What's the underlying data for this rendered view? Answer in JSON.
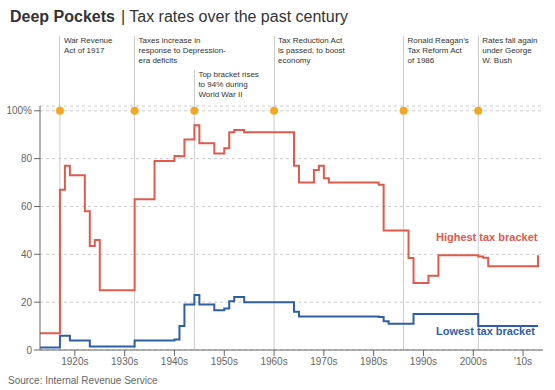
{
  "chart_data": {
    "type": "line",
    "line_style": "step",
    "title": "Deep Pockets",
    "subtitle": "| Tax rates over the past century",
    "x": [
      1913,
      1916,
      1917,
      1917,
      1918,
      1919,
      1922,
      1923,
      1924,
      1925,
      1926,
      1932,
      1933,
      1934,
      1936,
      1938,
      1940,
      1941,
      1942,
      1944,
      1945,
      1946,
      1948,
      1950,
      1951,
      1952,
      1954,
      1955,
      1963,
      1964,
      1965,
      1968,
      1969,
      1970,
      1971,
      1976,
      1977,
      1978,
      1979,
      1981,
      1982,
      1983,
      1984,
      1985,
      1986,
      1987,
      1988,
      1990,
      1991,
      1992,
      1993,
      2001,
      2002,
      2003,
      2004,
      2013
    ],
    "series": [
      {
        "name": "Highest tax bracket",
        "color": "#e05a4e",
        "values": [
          7,
          7,
          7,
          67,
          77,
          73,
          58,
          43.5,
          46,
          25,
          25,
          63,
          63,
          63,
          79,
          79,
          81.1,
          81,
          88,
          94,
          86.45,
          86.45,
          82.13,
          84.36,
          91,
          92,
          91,
          91,
          91,
          77,
          70,
          75.25,
          77,
          71.75,
          70,
          70,
          70,
          70,
          70,
          69.13,
          50,
          50,
          50,
          50,
          50,
          38.5,
          28,
          28,
          31,
          31,
          39.6,
          39.1,
          38.6,
          35,
          35,
          39.6
        ]
      },
      {
        "name": "Lowest tax bracket",
        "color": "#2e5fa3",
        "values": [
          1,
          1,
          1,
          6,
          6,
          4,
          4,
          1.5,
          1.5,
          1.5,
          1.5,
          4,
          4,
          4,
          4,
          4,
          4.4,
          10,
          19,
          23,
          19,
          19,
          16.6,
          17.4,
          20.4,
          22.2,
          20,
          20,
          20,
          16,
          14,
          14,
          14,
          14,
          14,
          14,
          14,
          14,
          14,
          13.825,
          12,
          11,
          11,
          11,
          11,
          11,
          15,
          15,
          15,
          15,
          15,
          10,
          10,
          10,
          10,
          10
        ]
      }
    ],
    "xlim": [
      1913,
      2014
    ],
    "ylim": [
      0,
      102
    ],
    "xticks": [
      {
        "value": 1920,
        "label": "1920s"
      },
      {
        "value": 1930,
        "label": "1930s"
      },
      {
        "value": 1940,
        "label": "1940s"
      },
      {
        "value": 1950,
        "label": "1950s"
      },
      {
        "value": 1960,
        "label": "1960s"
      },
      {
        "value": 1970,
        "label": "1970s"
      },
      {
        "value": 1980,
        "label": "1980s"
      },
      {
        "value": 1990,
        "label": "1990s"
      },
      {
        "value": 2000,
        "label": "2000s"
      },
      {
        "value": 2010,
        "label": "'10s"
      }
    ],
    "yticks": [
      0,
      20,
      40,
      60,
      80,
      {
        "value": 100,
        "label": "100%"
      }
    ],
    "grid": true,
    "annotations": [
      {
        "x": 1917,
        "y": 100,
        "color": "#f5a623",
        "text": "War Revenue\nAct of 1917"
      },
      {
        "x": 1932,
        "y": 100,
        "color": "#f5a623",
        "text": "Taxes increase in\nresponse to Depression-\nera deficits"
      },
      {
        "x": 1944,
        "y": 100,
        "color": "#f5a623",
        "text": "Top bracket rises\nto 94% during\nWorld War II"
      },
      {
        "x": 1960,
        "y": 100,
        "color": "#f5a623",
        "text": "Tax Reduction Act\nis passed, to boost\neconomy"
      },
      {
        "x": 1986,
        "y": 100,
        "color": "#f5a623",
        "text": "Ronald Reagan’s\nTax Reform Act\nof 1986"
      },
      {
        "x": 2001,
        "y": 100,
        "color": "#f5a623",
        "text": "Rates fall again\nunder George\nW. Bush"
      }
    ],
    "source": "Source: Internal Revenue Service"
  }
}
